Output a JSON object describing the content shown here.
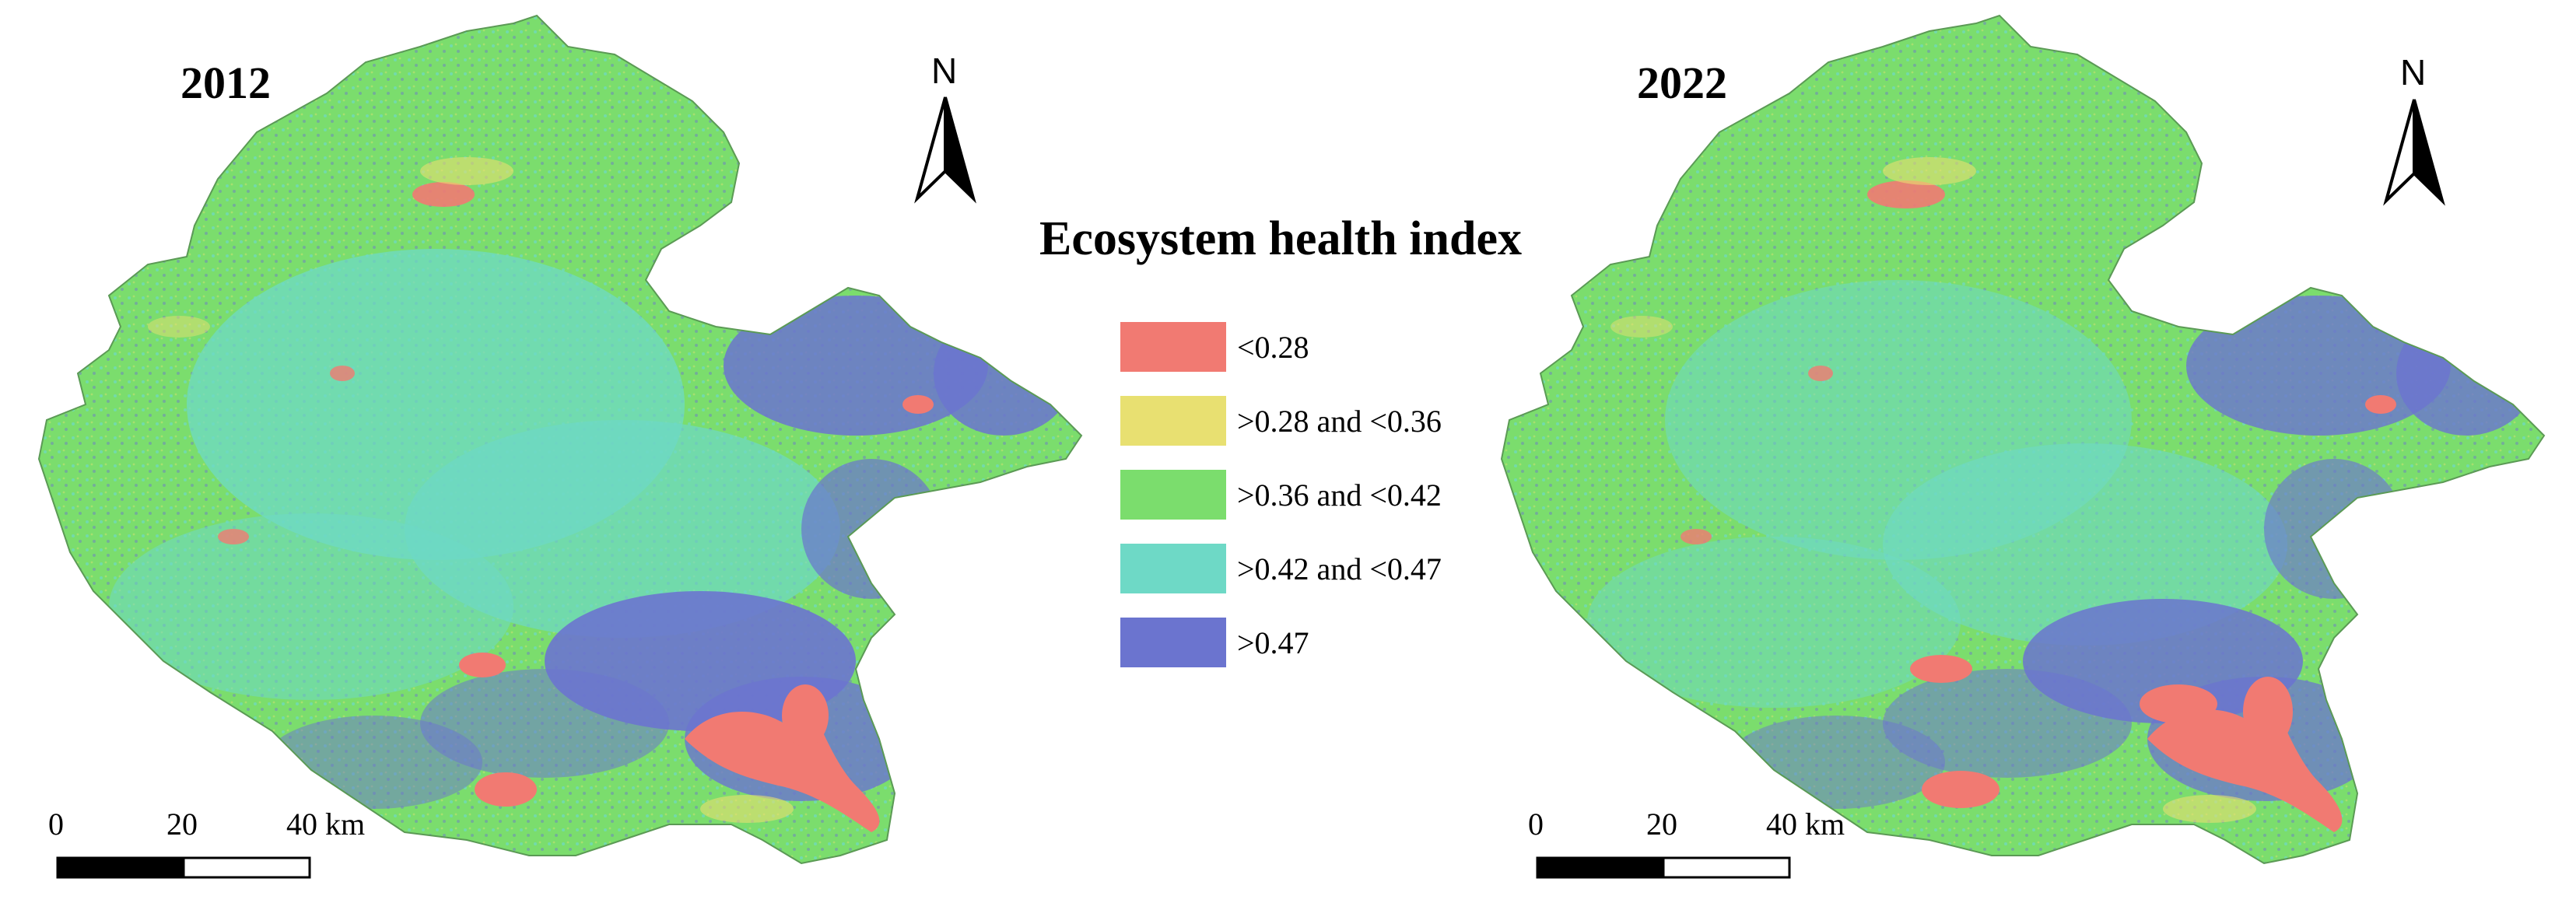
{
  "panels": [
    {
      "year": "2012",
      "scale_bar": {
        "tick_0": "0",
        "tick_1": "20",
        "tick_2": "40 km"
      },
      "north_arrow": {
        "letter": "N",
        "icon": "north-arrow-icon"
      }
    },
    {
      "year": "2022",
      "scale_bar": {
        "tick_0": "0",
        "tick_1": "20",
        "tick_2": "40 km"
      },
      "north_arrow": {
        "letter": "N",
        "icon": "north-arrow-icon"
      }
    }
  ],
  "legend": {
    "title": "Ecosystem health index",
    "items": [
      {
        "label": "<0.28",
        "color": "#f17a72"
      },
      {
        "label": ">0.28 and <0.36",
        "color": "#e8e071"
      },
      {
        "label": ">0.36 and <0.42",
        "color": "#7bdd6d"
      },
      {
        "label": ">0.42 and <0.47",
        "color": "#6ed9c6"
      },
      {
        "label": ">0.47",
        "color": "#6b74cf"
      }
    ]
  },
  "colors": {
    "base_green": "#7bdd6d",
    "teal": "#6ed9c6",
    "blue": "#6b74cf",
    "red": "#f17a72",
    "yellow": "#e8e071"
  }
}
